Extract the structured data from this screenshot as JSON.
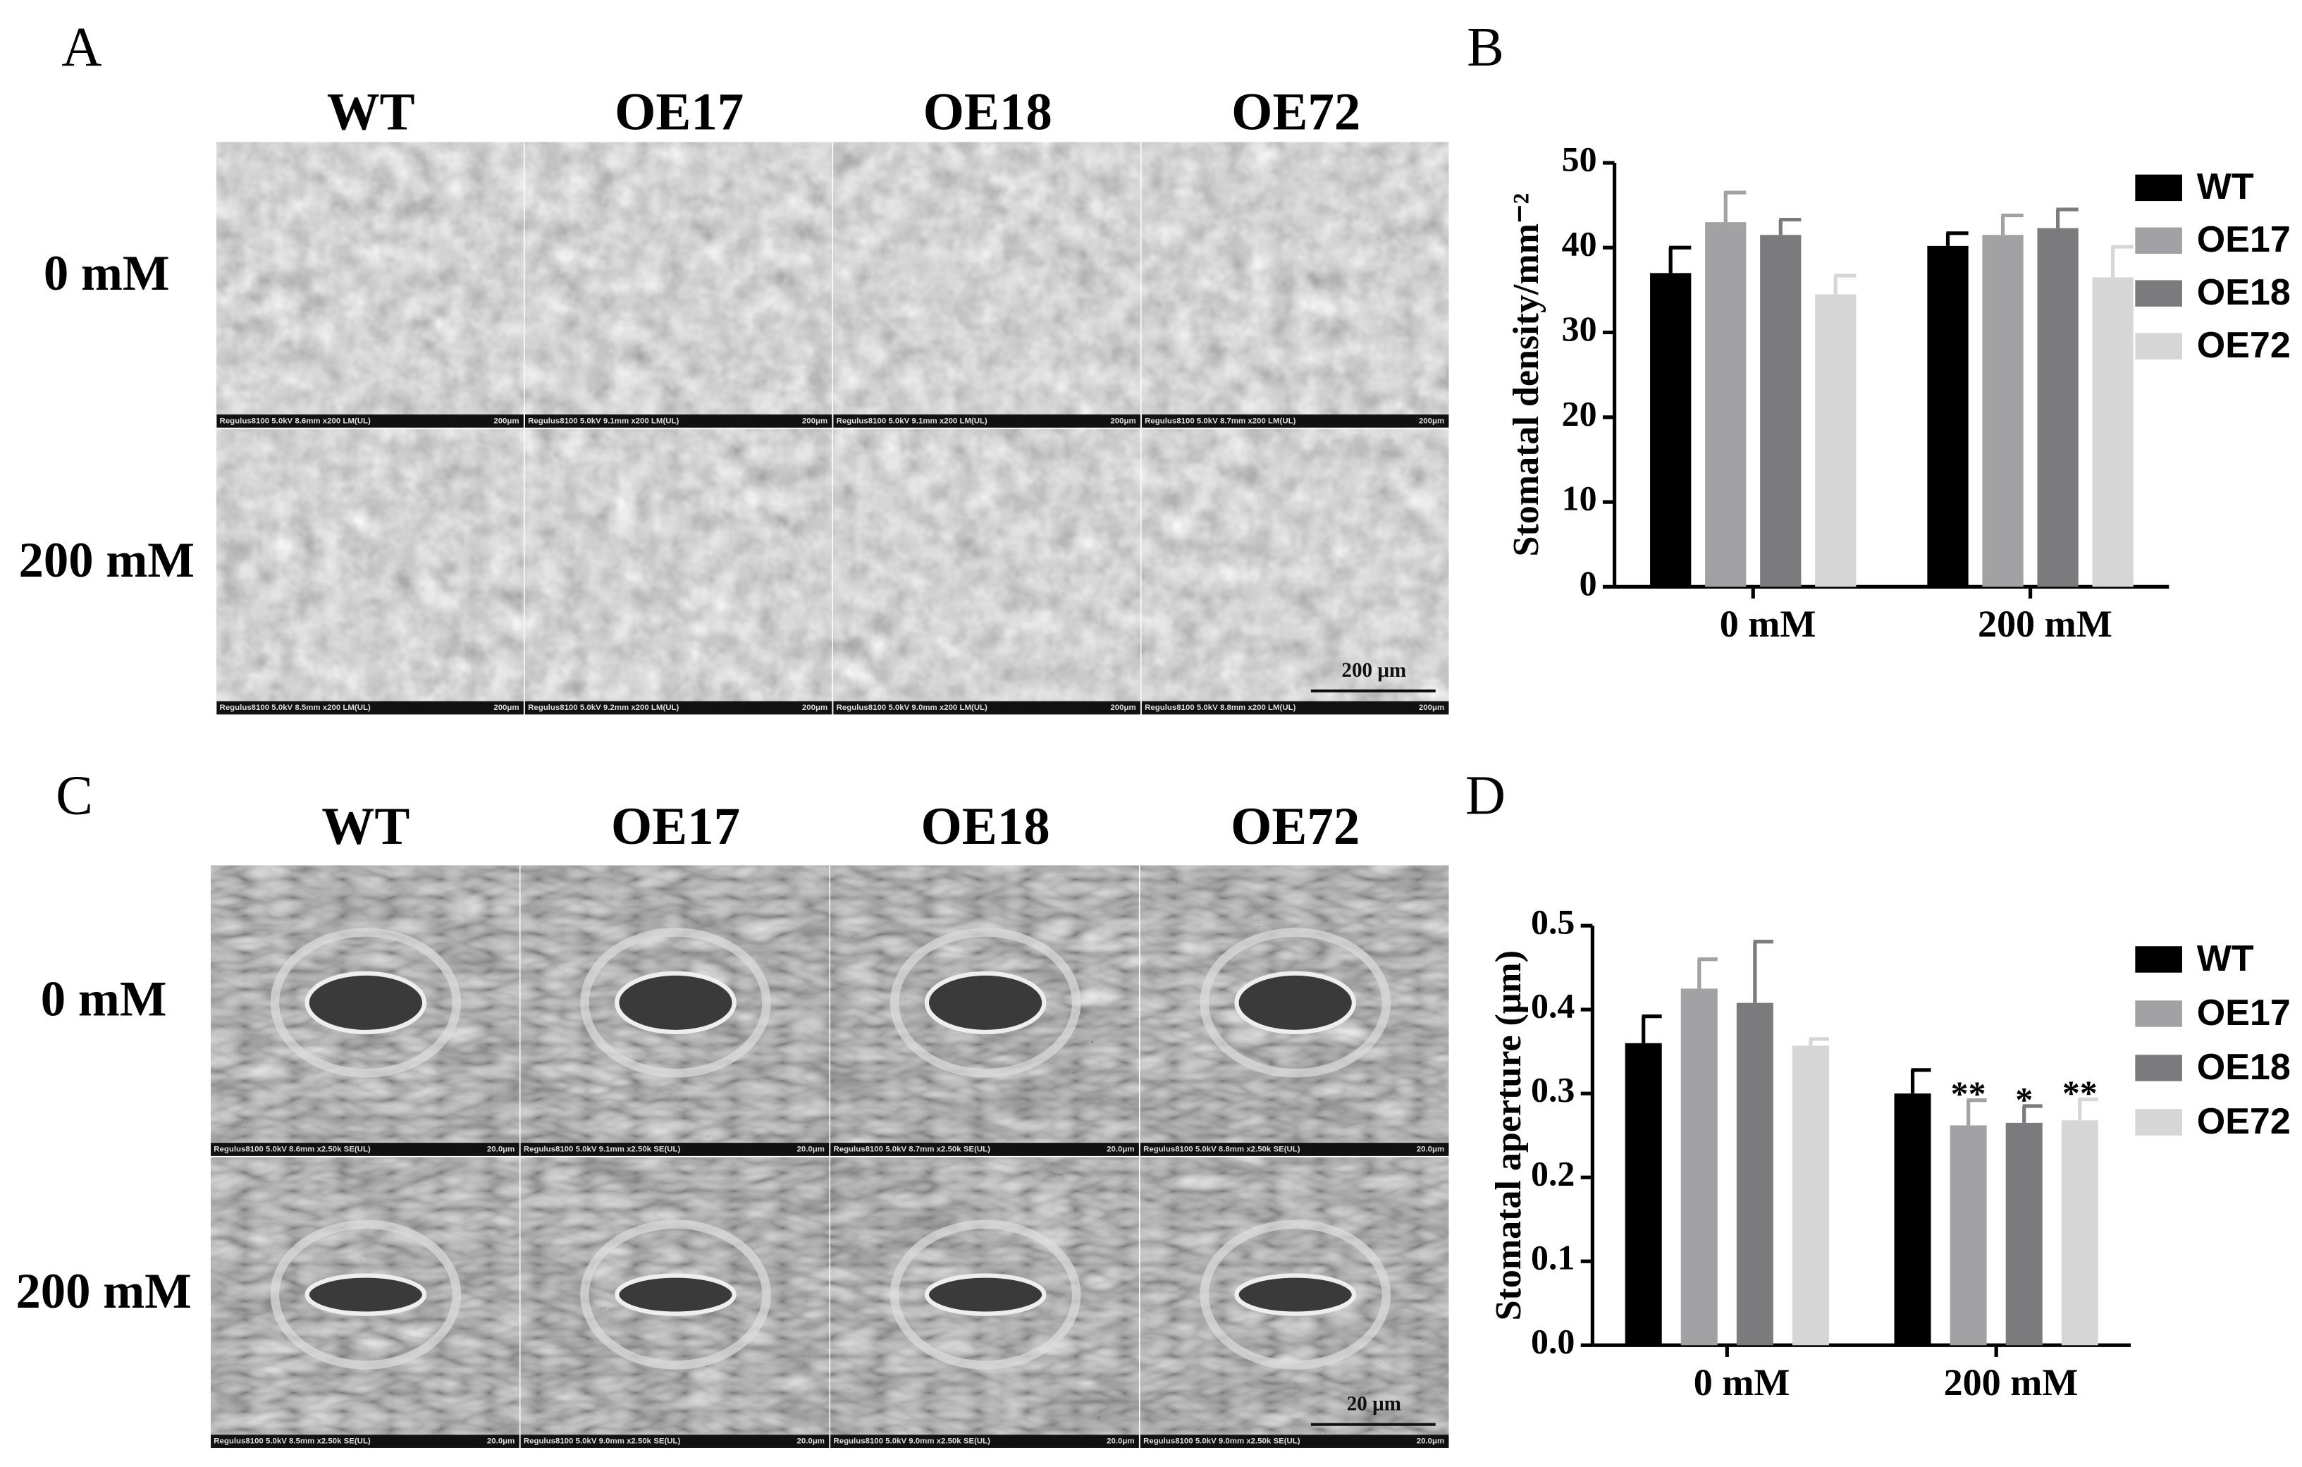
{
  "panel_a": {
    "letter": "A",
    "columns": [
      "WT",
      "OE17",
      "OE18",
      "OE72"
    ],
    "rows": [
      "0 mM",
      "200 mM"
    ],
    "footers": [
      [
        "Regulus8100 5.0kV 8.6mm x200 LM(UL)",
        "Regulus8100 5.0kV 9.1mm x200 LM(UL)",
        "Regulus8100 5.0kV 9.1mm x200 LM(UL)",
        "Regulus8100 5.0kV 8.7mm x200 LM(UL)"
      ],
      [
        "Regulus8100 5.0kV 8.5mm x200 LM(UL)",
        "Regulus8100 5.0kV 9.2mm x200 LM(UL)",
        "Regulus8100 5.0kV 9.0mm x200 LM(UL)",
        "Regulus8100 5.0kV 8.8mm x200 LM(UL)"
      ]
    ],
    "footer_scale": "200μm",
    "scale_bar": "200 μm"
  },
  "panel_c": {
    "letter": "C",
    "columns": [
      "WT",
      "OE17",
      "OE18",
      "OE72"
    ],
    "rows": [
      "0 mM",
      "200 mM"
    ],
    "footers": [
      [
        "Regulus8100 5.0kV 8.6mm x2.50k SE(UL)",
        "Regulus8100 5.0kV 9.1mm x2.50k SE(UL)",
        "Regulus8100 5.0kV 8.7mm x2.50k SE(UL)",
        "Regulus8100 5.0kV 8.8mm x2.50k SE(UL)"
      ],
      [
        "Regulus8100 5.0kV 8.5mm x2.50k SE(UL)",
        "Regulus8100 5.0kV 9.0mm x2.50k SE(UL)",
        "Regulus8100 5.0kV 9.0mm x2.50k SE(UL)",
        "Regulus8100 5.0kV 9.0mm x2.50k SE(UL)"
      ]
    ],
    "footer_scale": "20.0μm",
    "scale_bar": "20 μm"
  },
  "chart_data": [
    {
      "type": "bar",
      "panel": "B",
      "y_label": "Stomatal density/mm⁻²",
      "categories": [
        "0 mM",
        "200 mM"
      ],
      "ylim": [
        0,
        50
      ],
      "yticks": [
        0,
        10,
        20,
        30,
        40,
        50
      ],
      "series": [
        {
          "name": "WT",
          "color": "#000000",
          "values": [
            37,
            40.2
          ],
          "errors": [
            3,
            1.5
          ]
        },
        {
          "name": "OE17",
          "color": "#a2a2a4",
          "values": [
            43,
            41.5
          ],
          "errors": [
            3.5,
            2.3
          ]
        },
        {
          "name": "OE18",
          "color": "#7b7b7d",
          "values": [
            41.5,
            42.3
          ],
          "errors": [
            1.8,
            2.2
          ]
        },
        {
          "name": "OE72",
          "color": "#d6d6d6",
          "values": [
            34.5,
            36.5
          ],
          "errors": [
            2.2,
            3.6
          ]
        }
      ]
    },
    {
      "type": "bar",
      "panel": "D",
      "y_label": "Stomatal aperture (μm)",
      "categories": [
        "0 mM",
        "200 mM"
      ],
      "ylim": [
        0,
        0.5
      ],
      "yticks": [
        {
          "value": 0,
          "label": "0.0"
        },
        0.1,
        0.2,
        0.3,
        0.4,
        0.5
      ],
      "series": [
        {
          "name": "WT",
          "color": "#000000",
          "values": [
            0.36,
            0.3
          ],
          "errors": [
            0.032,
            0.028
          ]
        },
        {
          "name": "OE17",
          "color": "#a2a2a4",
          "values": [
            0.425,
            0.262
          ],
          "errors": [
            0.035,
            0.03
          ],
          "sig_labels": [
            null,
            "**"
          ]
        },
        {
          "name": "OE18",
          "color": "#7b7b7d",
          "values": [
            0.408,
            0.265
          ],
          "errors": [
            0.073,
            0.02
          ],
          "sig_labels": [
            null,
            "*"
          ]
        },
        {
          "name": "OE72",
          "color": "#d6d6d6",
          "values": [
            0.357,
            0.268
          ],
          "errors": [
            0.008,
            0.025
          ],
          "sig_labels": [
            null,
            "**"
          ]
        }
      ]
    }
  ]
}
